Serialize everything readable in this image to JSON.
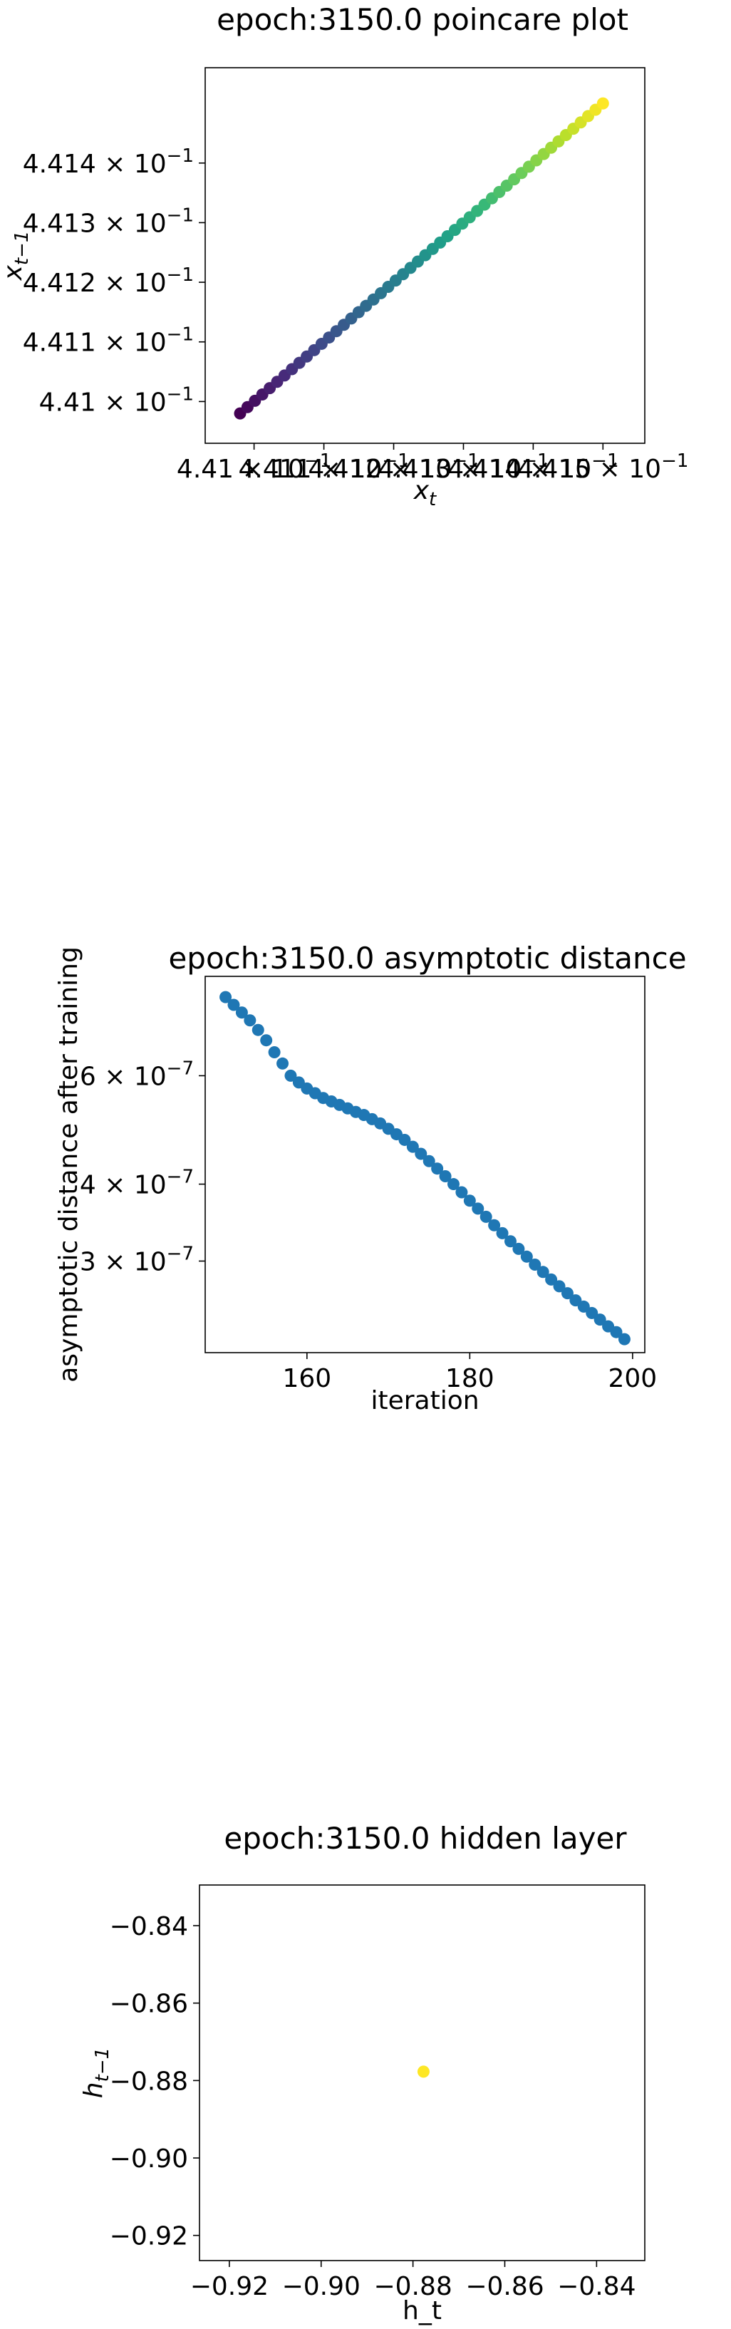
{
  "chart_data": [
    {
      "type": "scatter",
      "title": "epoch:3150.0 poincare plot",
      "xlabel": "x_t",
      "ylabel": "x_{t-1}",
      "x_scale": "log",
      "y_scale": "log",
      "xlim": [
        0.44093,
        0.44156
      ],
      "ylim": [
        0.44093,
        0.44156
      ],
      "x_ticks": [
        0.441,
        0.4411,
        0.4412,
        0.4413,
        0.4414,
        0.4415
      ],
      "x_tick_labels": [
        "4.41 × 10^-1",
        "4.411 × 10^-1",
        "4.412 × 10^-1",
        "4.413 × 10^-1",
        "4.414 × 10^-1",
        "4.415 × 10^-1"
      ],
      "y_ticks": [
        0.441,
        0.4411,
        0.4412,
        0.4413,
        0.4414
      ],
      "y_tick_labels": [
        "4.41 × 10^-1",
        "4.411 × 10^-1",
        "4.412 × 10^-1",
        "4.413 × 10^-1",
        "4.414 × 10^-1"
      ],
      "colormap": "viridis",
      "x_start": 0.44098,
      "x_end": 0.4415,
      "y_start": 0.44098,
      "y_end": 0.4415,
      "n_points": 50,
      "grid": false
    },
    {
      "type": "scatter",
      "title": "epoch:3150.0 asymptotic distance",
      "xlabel": "iteration",
      "ylabel": "asymptotic distance after training",
      "y_scale": "log",
      "xlim": [
        147.5,
        201.5
      ],
      "ylim": [
        2.13e-07,
        8.7e-07
      ],
      "x_ticks": [
        160,
        180,
        200
      ],
      "x_tick_labels": [
        "160",
        "180",
        "200"
      ],
      "y_ticks": [
        3e-07,
        4e-07,
        6e-07
      ],
      "y_tick_labels": [
        "3 × 10^-7",
        "4 × 10^-7",
        "6 × 10^-7"
      ],
      "color": "#1f77b4",
      "x": [
        150,
        151,
        152,
        153,
        154,
        155,
        156,
        157,
        158,
        159,
        160,
        161,
        162,
        163,
        164,
        165,
        166,
        167,
        168,
        169,
        170,
        171,
        172,
        173,
        174,
        175,
        176,
        177,
        178,
        179,
        180,
        181,
        182,
        183,
        184,
        185,
        186,
        187,
        188,
        189,
        190,
        191,
        192,
        193,
        194,
        195,
        196,
        197,
        198,
        199
      ],
      "y": [
        8.05e-07,
        7.82e-07,
        7.6e-07,
        7.38e-07,
        7.12e-07,
        6.85e-07,
        6.55e-07,
        6.28e-07,
        6e-07,
        5.85e-07,
        5.72e-07,
        5.62e-07,
        5.52e-07,
        5.45e-07,
        5.38e-07,
        5.31e-07,
        5.24e-07,
        5.18e-07,
        5.1e-07,
        5.02e-07,
        4.92e-07,
        4.82e-07,
        4.72e-07,
        4.6e-07,
        4.48e-07,
        4.36e-07,
        4.24e-07,
        4.12e-07,
        4e-07,
        3.88e-07,
        3.76e-07,
        3.65e-07,
        3.54e-07,
        3.43e-07,
        3.33e-07,
        3.23e-07,
        3.14e-07,
        3.05e-07,
        2.96e-07,
        2.88e-07,
        2.8e-07,
        2.73e-07,
        2.66e-07,
        2.59e-07,
        2.53e-07,
        2.47e-07,
        2.41e-07,
        2.35e-07,
        2.3e-07,
        2.24e-07
      ],
      "grid": false
    },
    {
      "type": "scatter",
      "title": "epoch:3150.0 hidden layer",
      "xlabel": "h_t",
      "ylabel": "h_{t-1}",
      "xlim": [
        -0.9265,
        -0.8295
      ],
      "ylim": [
        -0.9265,
        -0.8295
      ],
      "x_ticks": [
        -0.92,
        -0.9,
        -0.88,
        -0.86,
        -0.84
      ],
      "x_tick_labels": [
        "−0.92",
        "−0.90",
        "−0.88",
        "−0.86",
        "−0.84"
      ],
      "y_ticks": [
        -0.92,
        -0.9,
        -0.88,
        -0.86,
        -0.84
      ],
      "y_tick_labels": [
        "−0.92",
        "−0.90",
        "−0.88",
        "−0.86",
        "−0.84"
      ],
      "color": "#fde725",
      "x": [
        -0.8777
      ],
      "y": [
        -0.8777
      ],
      "grid": false
    }
  ]
}
